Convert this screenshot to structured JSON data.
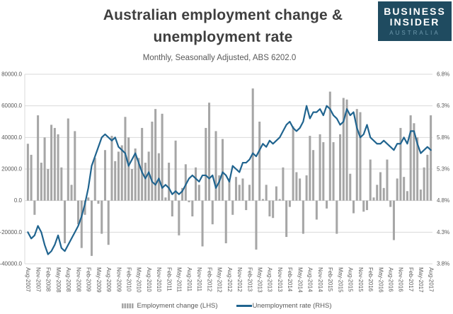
{
  "header": {
    "title_line1": "Australian employment change &",
    "title_line2": "unemployment rate",
    "subtitle": "Monthly, Seasonally Adjusted, ABS 6202.0"
  },
  "logo": {
    "line1": "BUSINESS",
    "line2": "INSIDER",
    "line3": "AUSTRALIA",
    "bg_color": "#1f4b60",
    "accent_color": "#6e99ad"
  },
  "legend": {
    "items": [
      {
        "label": "Employment change (LHS)",
        "type": "bar",
        "color": "#a6a6a6"
      },
      {
        "label": "Unemployment rate (RHS)",
        "type": "line",
        "color": "#20648f"
      }
    ]
  },
  "colors": {
    "grid": "#d9d9d9",
    "axis_text": "#595959",
    "bar": "#a6a6a6",
    "line": "#20648f"
  },
  "chart_data": {
    "type": "combo",
    "title": "Australian employment change & unemployment rate",
    "subtitle": "Monthly, Seasonally Adjusted, ABS 6202.0",
    "grid": "horizontal",
    "legend_position": "bottom",
    "x_tick_step": 3,
    "x": [
      "Aug-2007",
      "Sep-2007",
      "Oct-2007",
      "Nov-2007",
      "Dec-2007",
      "Jan-2008",
      "Feb-2008",
      "Mar-2008",
      "Apr-2008",
      "May-2008",
      "Jun-2008",
      "Jul-2008",
      "Aug-2008",
      "Sep-2008",
      "Oct-2008",
      "Nov-2008",
      "Dec-2008",
      "Jan-2009",
      "Feb-2009",
      "Mar-2009",
      "Apr-2009",
      "May-2009",
      "Jun-2009",
      "Jul-2009",
      "Aug-2009",
      "Sep-2009",
      "Oct-2009",
      "Nov-2009",
      "Dec-2009",
      "Jan-2010",
      "Feb-2010",
      "Mar-2010",
      "Apr-2010",
      "May-2010",
      "Jun-2010",
      "Jul-2010",
      "Aug-2010",
      "Sep-2010",
      "Oct-2010",
      "Nov-2010",
      "Dec-2010",
      "Jan-2011",
      "Feb-2011",
      "Mar-2011",
      "Apr-2011",
      "May-2011",
      "Jun-2011",
      "Jul-2011",
      "Aug-2011",
      "Sep-2011",
      "Oct-2011",
      "Nov-2011",
      "Dec-2011",
      "Jan-2012",
      "Feb-2012",
      "Mar-2012",
      "Apr-2012",
      "May-2012",
      "Jun-2012",
      "Jul-2012",
      "Aug-2012",
      "Sep-2012",
      "Oct-2012",
      "Nov-2012",
      "Dec-2012",
      "Jan-2013",
      "Feb-2013",
      "Mar-2013",
      "Apr-2013",
      "May-2013",
      "Jun-2013",
      "Jul-2013",
      "Aug-2013",
      "Sep-2013",
      "Oct-2013",
      "Nov-2013",
      "Dec-2013",
      "Jan-2014",
      "Feb-2014",
      "Mar-2014",
      "Apr-2014",
      "May-2014",
      "Jun-2014",
      "Jul-2014",
      "Aug-2014",
      "Sep-2014",
      "Oct-2014",
      "Nov-2014",
      "Dec-2014",
      "Jan-2015",
      "Feb-2015",
      "Mar-2015",
      "Apr-2015",
      "May-2015",
      "Jun-2015",
      "Jul-2015",
      "Aug-2015",
      "Sep-2015",
      "Oct-2015",
      "Nov-2015",
      "Dec-2015",
      "Jan-2016",
      "Feb-2016",
      "Mar-2016",
      "Apr-2016",
      "May-2016",
      "Jun-2016",
      "Jul-2016",
      "Aug-2016",
      "Sep-2016",
      "Oct-2016",
      "Nov-2016",
      "Dec-2016",
      "Jan-2017",
      "Feb-2017",
      "Mar-2017",
      "Apr-2017",
      "May-2017",
      "Jun-2017",
      "Jul-2017",
      "Aug-2017"
    ],
    "left_axis": {
      "label": "Employment change",
      "min": -40000,
      "max": 80000,
      "step": 20000,
      "tick_labels": [
        "80000.0",
        "60000.0",
        "40000.0",
        "20000.0",
        "0.0",
        "-20000.0",
        "-40000.0"
      ]
    },
    "right_axis": {
      "label": "Unemployment rate",
      "min": 3.8,
      "max": 6.8,
      "step": 0.5,
      "tick_labels": [
        "6.8%",
        "6.3%",
        "5.8%",
        "5.3%",
        "4.8%",
        "4.3%",
        "3.8%"
      ]
    },
    "series": [
      {
        "name": "Employment change (LHS)",
        "type": "bar",
        "axis": "left",
        "color": "#a6a6a6",
        "values": [
          36000,
          29000,
          -9000,
          54000,
          24000,
          40000,
          20000,
          48000,
          46000,
          42000,
          21000,
          -27000,
          52000,
          10000,
          44000,
          -15000,
          -30000,
          -9000,
          2000,
          -35000,
          27000,
          -2000,
          -21000,
          32000,
          -28000,
          41000,
          25000,
          31000,
          35000,
          53000,
          40000,
          20000,
          33000,
          27000,
          46000,
          24000,
          31000,
          50000,
          58000,
          30000,
          55000,
          2000,
          24000,
          -10000,
          38000,
          -22000,
          8000,
          23000,
          -1000,
          -10000,
          21000,
          10000,
          -29000,
          46000,
          62000,
          -15000,
          44000,
          16000,
          39000,
          -27000,
          14000,
          -9000,
          15000,
          10000,
          14000,
          -6000,
          10000,
          71000,
          -31000,
          50000,
          1000,
          10000,
          -10000,
          -11000,
          9000,
          1000,
          21000,
          -23000,
          -4000,
          47000,
          18000,
          14000,
          -21000,
          16000,
          41000,
          32000,
          -12000,
          42000,
          37000,
          -5000,
          69000,
          37000,
          -21000,
          42000,
          65000,
          64000,
          17000,
          -8000,
          58000,
          56000,
          -7000,
          -6000,
          26000,
          2000,
          10000,
          18000,
          8000,
          26000,
          -4000,
          -25000,
          14000,
          46000,
          15000,
          6000,
          54000,
          49000,
          40000,
          7000,
          21000,
          29000,
          54000
        ]
      },
      {
        "name": "Unemployment rate (RHS)",
        "type": "line",
        "axis": "right",
        "color": "#20648f",
        "values": [
          4.3,
          4.2,
          4.25,
          4.4,
          4.3,
          4.1,
          3.95,
          4.0,
          4.1,
          4.25,
          4.05,
          4.0,
          4.1,
          4.2,
          4.3,
          4.4,
          4.55,
          4.75,
          5.0,
          5.35,
          5.5,
          5.65,
          5.8,
          5.85,
          5.8,
          5.75,
          5.8,
          5.65,
          5.6,
          5.55,
          5.35,
          5.45,
          5.55,
          5.4,
          5.25,
          5.15,
          5.25,
          5.1,
          5.05,
          5.15,
          5.0,
          5.05,
          5.0,
          4.9,
          4.95,
          4.9,
          4.95,
          5.05,
          5.15,
          5.2,
          5.15,
          5.1,
          5.2,
          5.2,
          5.15,
          5.2,
          5.0,
          5.1,
          5.25,
          5.2,
          5.1,
          5.35,
          5.3,
          5.25,
          5.4,
          5.4,
          5.45,
          5.55,
          5.5,
          5.6,
          5.7,
          5.65,
          5.75,
          5.7,
          5.75,
          5.8,
          5.9,
          6.0,
          6.05,
          5.95,
          5.9,
          5.95,
          6.05,
          6.3,
          6.1,
          6.2,
          6.2,
          6.25,
          6.15,
          6.3,
          6.25,
          6.15,
          6.1,
          6.0,
          6.05,
          6.25,
          6.15,
          6.2,
          5.95,
          5.8,
          5.85,
          6.0,
          5.8,
          5.75,
          5.7,
          5.7,
          5.75,
          5.7,
          5.65,
          5.6,
          5.7,
          5.7,
          5.8,
          5.7,
          5.9,
          5.9,
          5.7,
          5.55,
          5.6,
          5.65,
          5.6
        ]
      }
    ]
  }
}
